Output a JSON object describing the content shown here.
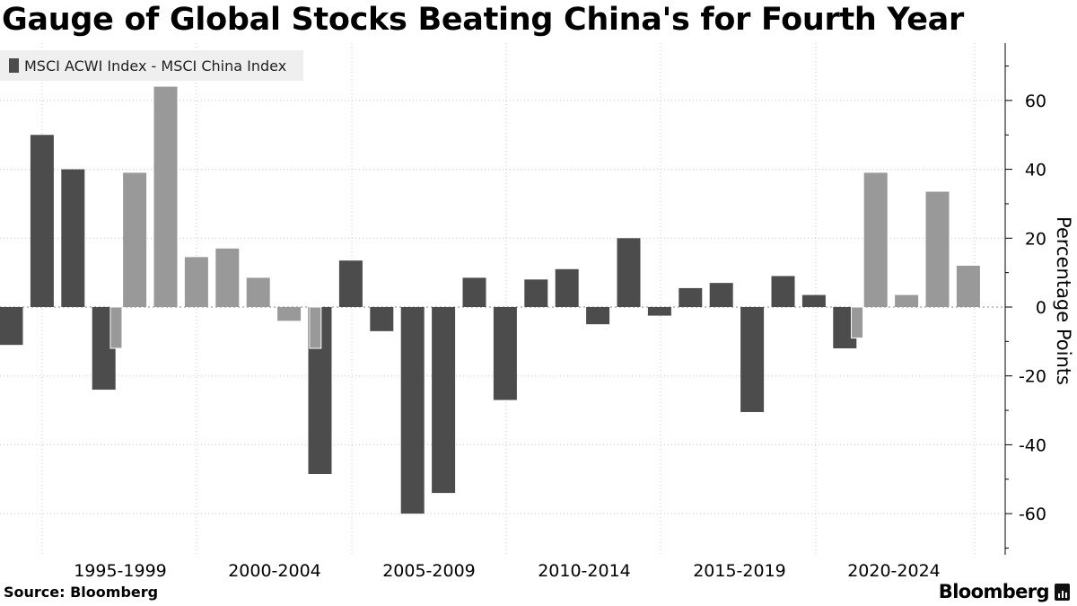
{
  "title": "Gauge of Global Stocks Beating China's for Fourth Year",
  "source_label": "Source: Bloomberg",
  "brand": "Bloomberg",
  "colors": {
    "primary_bar": "#4c4c4c",
    "secondary_bar": "#999999",
    "grid": "#c8c8c8",
    "axis": "#000000"
  },
  "chart_data": {
    "type": "bar",
    "title": "Gauge of Global Stocks Beating China's for Fourth Year",
    "legend": [
      "MSCI ACWI Index - MSCI China Index"
    ],
    "ylabel": "Percentage Points",
    "ylim": [
      -72,
      76
    ],
    "yticks": [
      60,
      40,
      20,
      0,
      -20,
      -40,
      -60
    ],
    "x_period_labels": [
      "1995-1999",
      "2000-2004",
      "2005-2009",
      "2010-2014",
      "2015-2019",
      "2020-2024"
    ],
    "bars": [
      {
        "slot": 0,
        "value": -11,
        "series": "dark"
      },
      {
        "slot": 1,
        "value": 50,
        "series": "dark"
      },
      {
        "slot": 2,
        "value": 40,
        "series": "dark"
      },
      {
        "slot": 3,
        "value": -24,
        "series": "dark"
      },
      {
        "slot": 3.4,
        "value": -12,
        "series": "light",
        "narrow": true
      },
      {
        "slot": 4,
        "value": 39,
        "series": "light"
      },
      {
        "slot": 5,
        "value": 64,
        "series": "light"
      },
      {
        "slot": 6,
        "value": 14.5,
        "series": "light"
      },
      {
        "slot": 7,
        "value": 17,
        "series": "light"
      },
      {
        "slot": 8,
        "value": 8.5,
        "series": "light"
      },
      {
        "slot": 9,
        "value": -4,
        "series": "light"
      },
      {
        "slot": 10,
        "value": -48.5,
        "series": "dark"
      },
      {
        "slot": 9.85,
        "value": -12,
        "series": "light",
        "narrow": true
      },
      {
        "slot": 11,
        "value": 13.5,
        "series": "dark"
      },
      {
        "slot": 12,
        "value": -7,
        "series": "dark"
      },
      {
        "slot": 13,
        "value": -60,
        "series": "dark"
      },
      {
        "slot": 14,
        "value": -54,
        "series": "dark"
      },
      {
        "slot": 15,
        "value": 8.5,
        "series": "dark"
      },
      {
        "slot": 16,
        "value": -27,
        "series": "dark"
      },
      {
        "slot": 17,
        "value": 8,
        "series": "dark"
      },
      {
        "slot": 18,
        "value": 11,
        "series": "dark"
      },
      {
        "slot": 19,
        "value": -5,
        "series": "dark"
      },
      {
        "slot": 20,
        "value": 20,
        "series": "dark"
      },
      {
        "slot": 21,
        "value": -2.5,
        "series": "dark"
      },
      {
        "slot": 22,
        "value": 5.5,
        "series": "dark"
      },
      {
        "slot": 23,
        "value": 7,
        "series": "dark"
      },
      {
        "slot": 24,
        "value": -30.5,
        "series": "dark"
      },
      {
        "slot": 25,
        "value": 9,
        "series": "dark"
      },
      {
        "slot": 26,
        "value": 3.5,
        "series": "dark"
      },
      {
        "slot": 27,
        "value": -12,
        "series": "dark"
      },
      {
        "slot": 27.4,
        "value": -9,
        "series": "light",
        "narrow": true
      },
      {
        "slot": 28,
        "value": 39,
        "series": "light"
      },
      {
        "slot": 29,
        "value": 3.5,
        "series": "light"
      },
      {
        "slot": 30,
        "value": 33.5,
        "series": "light"
      },
      {
        "slot": 31,
        "value": 12,
        "series": "light"
      }
    ]
  }
}
